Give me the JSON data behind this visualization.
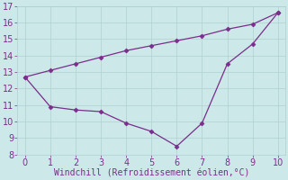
{
  "line1_x": [
    0,
    1,
    2,
    3,
    4,
    5,
    6,
    7,
    8,
    9,
    10
  ],
  "line1_y": [
    12.7,
    10.9,
    10.7,
    10.6,
    9.9,
    9.4,
    8.5,
    9.9,
    13.5,
    14.7,
    16.6
  ],
  "line2_x": [
    0,
    1,
    2,
    3,
    4,
    5,
    6,
    7,
    8,
    9,
    10
  ],
  "line2_y": [
    12.7,
    13.1,
    13.5,
    13.9,
    14.3,
    14.6,
    14.9,
    15.2,
    15.6,
    15.9,
    16.6
  ],
  "line_color": "#7B2D8B",
  "marker": "D",
  "marker_size": 2.5,
  "xlabel": "Windchill (Refroidissement éolien,°C)",
  "xlim": [
    -0.3,
    10.3
  ],
  "ylim": [
    8,
    17
  ],
  "yticks": [
    8,
    9,
    10,
    11,
    12,
    13,
    14,
    15,
    16,
    17
  ],
  "xticks": [
    0,
    1,
    2,
    3,
    4,
    5,
    6,
    7,
    8,
    9,
    10
  ],
  "background_color": "#cce8e8",
  "grid_color": "#b0d0d0",
  "font_color": "#7B2D8B",
  "font_size": 7,
  "xlabel_fontsize": 7,
  "linewidth": 0.9
}
